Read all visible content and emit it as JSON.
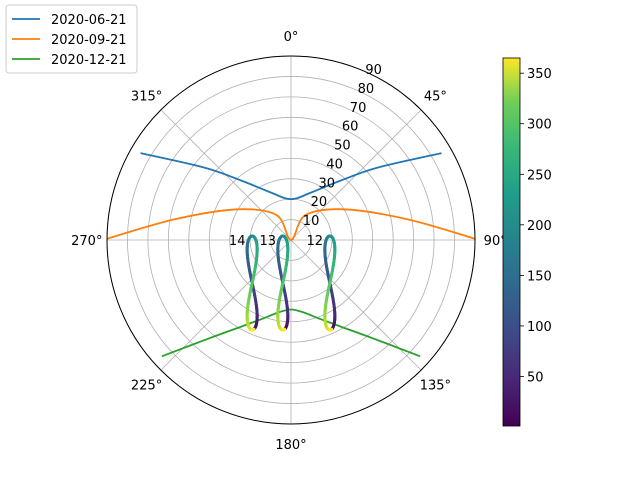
{
  "chart_data": {
    "type": "polar-line",
    "title": "",
    "angle_ticks": [
      "0°",
      "45°",
      "90°",
      "135°",
      "180°",
      "225°",
      "270°",
      "315°"
    ],
    "radial_ticks": [
      "10",
      "20",
      "30",
      "40",
      "50",
      "60",
      "70",
      "80",
      "90"
    ],
    "rlim": [
      0,
      90
    ],
    "angle_zero": "top",
    "angle_direction": "clockwise",
    "grid": true,
    "legend": {
      "placement": "top-left",
      "entries": [
        "2020-06-21",
        "2020-09-21",
        "2020-12-21"
      ]
    },
    "series": [
      {
        "name": "2020-06-21",
        "color": "#1f77b4",
        "azimuth_deg": [
          -60,
          -50,
          -40,
          -30,
          -20,
          -10,
          0,
          10,
          20,
          30,
          40,
          50,
          60
        ],
        "zenith_deg": [
          85,
          55,
          38,
          29,
          24,
          21,
          20,
          21,
          24,
          29,
          38,
          55,
          85
        ]
      },
      {
        "name": "2020-09-21",
        "color": "#ff7f0e",
        "azimuth_deg": [
          -90,
          -80,
          -60,
          -30,
          0,
          30,
          60,
          80,
          90
        ],
        "zenith_deg": [
          92,
          58,
          30,
          14,
          0,
          14,
          30,
          58,
          92
        ]
      },
      {
        "name": "2020-12-21",
        "color": "#2ca02c",
        "azimuth_deg": [
          -132,
          -140,
          -150,
          -160,
          -170,
          180,
          170,
          160,
          150,
          140,
          132
        ],
        "zenith_deg": [
          85,
          63,
          49,
          41,
          36,
          34,
          36,
          41,
          49,
          63,
          85
        ]
      }
    ],
    "analemmas": [
      {
        "label": "14",
        "azimuth_deg": -90,
        "zenith_deg": 19
      },
      {
        "label": "13",
        "azimuth_deg": -90,
        "zenith_deg": 4
      },
      {
        "label": "12",
        "azimuth_deg": 90,
        "zenith_deg": 19
      }
    ],
    "colorbar": {
      "min": 1,
      "max": 365,
      "ticks": [
        "50",
        "100",
        "150",
        "200",
        "250",
        "300",
        "350"
      ],
      "colormap": "viridis"
    }
  }
}
